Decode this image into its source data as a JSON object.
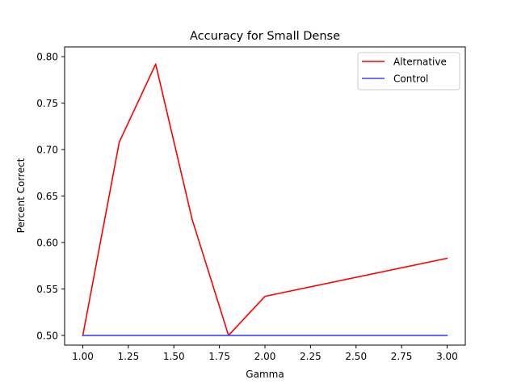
{
  "chart_data": {
    "type": "line",
    "title": "Accuracy for Small Dense",
    "xlabel": "Gamma",
    "ylabel": "Percent Correct",
    "xlim": [
      0.9,
      3.1
    ],
    "ylim": [
      0.4895,
      0.8105
    ],
    "xticks": [
      "1.00",
      "1.25",
      "1.50",
      "1.75",
      "2.00",
      "2.25",
      "2.50",
      "2.75",
      "3.00"
    ],
    "yticks": [
      "0.50",
      "0.55",
      "0.60",
      "0.65",
      "0.70",
      "0.75",
      "0.80"
    ],
    "grid": false,
    "legend_position": "top-right",
    "series": [
      {
        "name": "Alternative",
        "color": "#ff0000",
        "x": [
          1.0,
          1.2,
          1.4,
          1.6,
          1.8,
          2.0,
          3.0
        ],
        "y": [
          0.5,
          0.708,
          0.792,
          0.625,
          0.5,
          0.542,
          0.583
        ]
      },
      {
        "name": "Control",
        "color": "#4040ff",
        "x": [
          1.0,
          1.2,
          1.4,
          1.6,
          1.8,
          2.0,
          3.0
        ],
        "y": [
          0.5,
          0.5,
          0.5,
          0.5,
          0.5,
          0.5,
          0.5
        ]
      }
    ]
  }
}
